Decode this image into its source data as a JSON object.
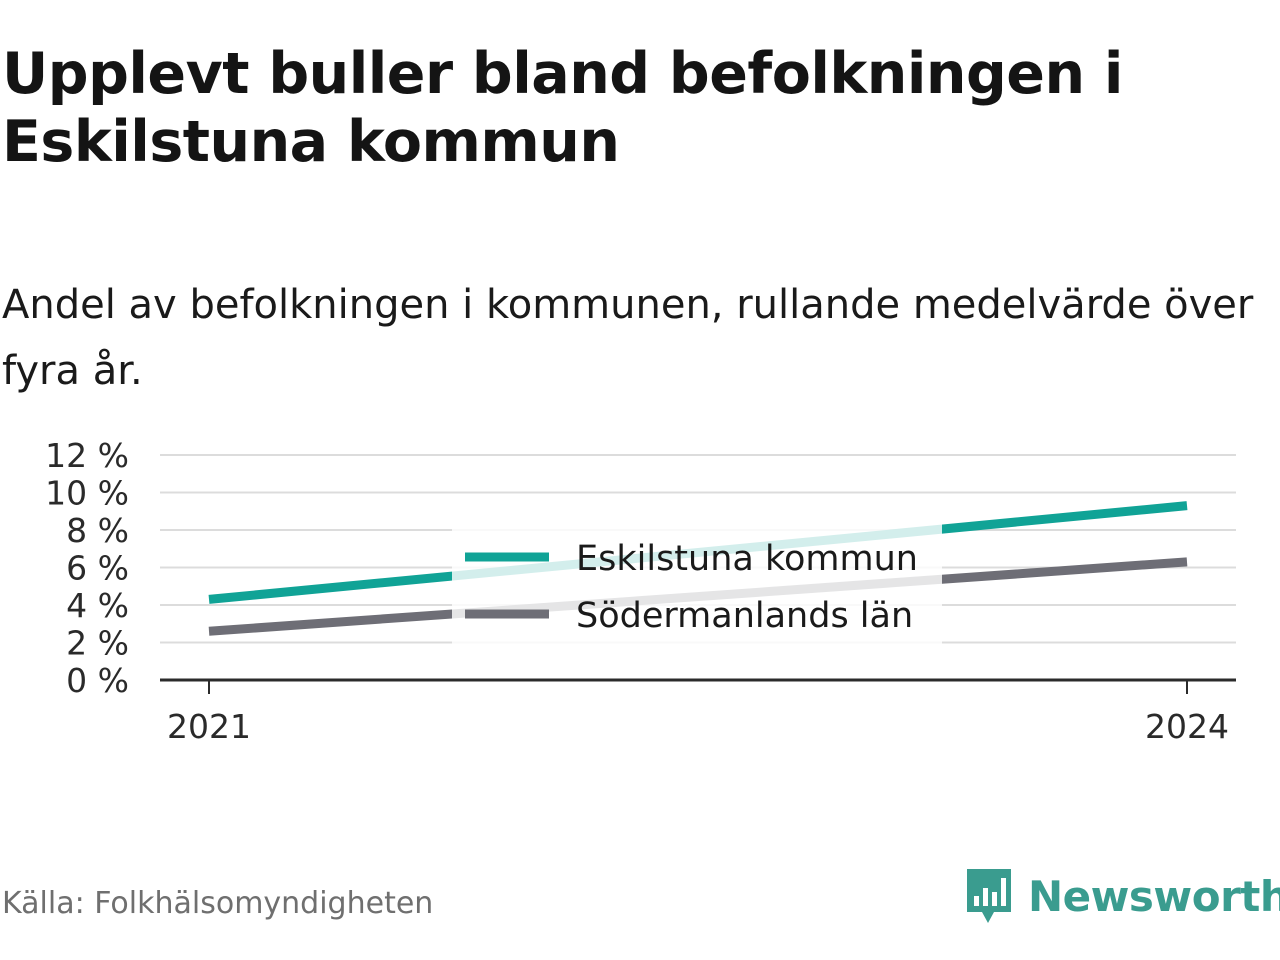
{
  "header": {
    "title": "Upplevt buller bland befolkningen i Eskilstuna kommun",
    "subtitle": "Andel av befolkningen i kommunen, rullande medelvärde över fyra år."
  },
  "footer": {
    "source": "Källa: Folkhälsomyndigheten",
    "brand": "Newsworthy"
  },
  "colors": {
    "series_1": "#10a396",
    "series_2": "#6e6e76",
    "brand": "#3a9c8f"
  },
  "icons": {
    "brand_logo": "bar-chart-speech-bubble-icon"
  },
  "chart_data": {
    "type": "line",
    "x": [
      2021,
      2024
    ],
    "xticks": [
      "2021",
      "2024"
    ],
    "yticks": [
      "0 %",
      "2 %",
      "4 %",
      "6 %",
      "8 %",
      "10 %",
      "12 %"
    ],
    "ylim": [
      0,
      12
    ],
    "grid": true,
    "legend_placement": "center",
    "series": [
      {
        "name": "Eskilstuna kommun",
        "values": [
          4.3,
          9.3
        ]
      },
      {
        "name": "Södermanlands län",
        "values": [
          2.6,
          6.3
        ]
      }
    ]
  }
}
